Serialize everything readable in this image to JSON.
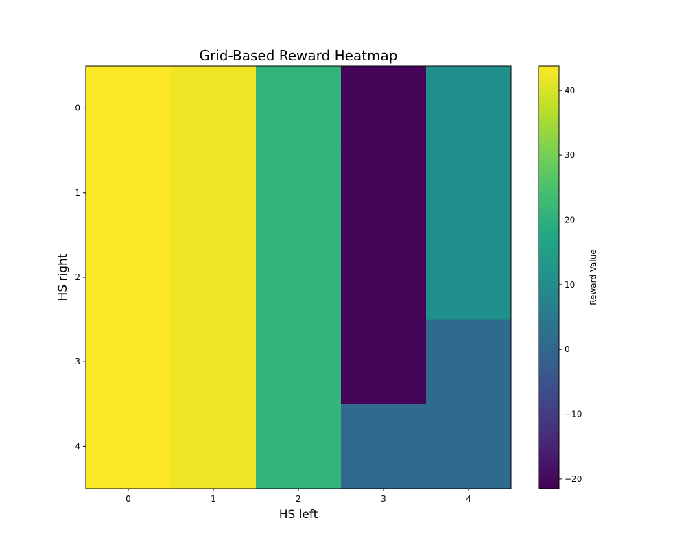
{
  "chart_data": {
    "type": "heatmap",
    "title": "Grid-Based Reward Heatmap",
    "xlabel": "HS left",
    "ylabel": "HS right",
    "x_categories": [
      "0",
      "1",
      "2",
      "3",
      "4"
    ],
    "y_categories": [
      "0",
      "1",
      "2",
      "3",
      "4"
    ],
    "matrix": [
      [
        43.5,
        42.5,
        21,
        -21,
        11
      ],
      [
        43.5,
        42.5,
        21,
        -21,
        11
      ],
      [
        43.5,
        42.5,
        21,
        -21,
        11
      ],
      [
        43.5,
        42.5,
        21,
        -21,
        1
      ],
      [
        43.5,
        42.5,
        21,
        1,
        1
      ]
    ],
    "colormap": "viridis",
    "vmin": -21.5,
    "vmax": 43.8,
    "colorbar": {
      "label": "Reward Value",
      "ticks": [
        40,
        30,
        20,
        10,
        0,
        -10,
        -20
      ],
      "tick_labels": [
        "40",
        "30",
        "20",
        "10",
        "0",
        "−10",
        "−20"
      ]
    },
    "grid": false,
    "legend": "none"
  }
}
